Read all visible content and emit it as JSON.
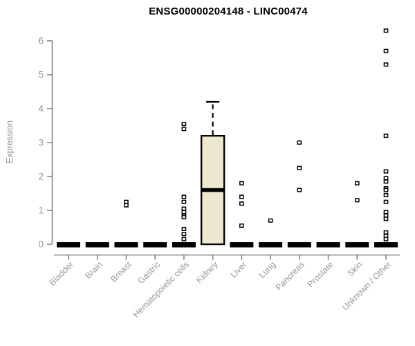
{
  "header": {
    "title": "ENSG00000204148 - LINC00474"
  },
  "chart_data": {
    "type": "boxplot",
    "title": "ENSG00000204148 - LINC00474",
    "xlabel": "",
    "ylabel": "Expression",
    "ylim": [
      0,
      6.45
    ],
    "yticks": [
      0,
      1,
      2,
      3,
      4,
      5,
      6
    ],
    "grid": false,
    "legend": false,
    "categories": [
      "Bladder",
      "Brain",
      "Breast",
      "Gastric",
      "Hematopoietic cells",
      "Kidney",
      "Liver",
      "Lung",
      "Pancreas",
      "Prostate",
      "Skin",
      "Unknown / Other"
    ],
    "boxes": [
      {
        "category": "Bladder",
        "whisker_low": 0,
        "q1": 0,
        "median": 0,
        "q3": 0,
        "whisker_high": 0,
        "outliers": []
      },
      {
        "category": "Brain",
        "whisker_low": 0,
        "q1": 0,
        "median": 0,
        "q3": 0,
        "whisker_high": 0,
        "outliers": []
      },
      {
        "category": "Breast",
        "whisker_low": 0,
        "q1": 0,
        "median": 0,
        "q3": 0,
        "whisker_high": 0,
        "outliers": [
          1.25,
          1.15
        ]
      },
      {
        "category": "Gastric",
        "whisker_low": 0,
        "q1": 0,
        "median": 0,
        "q3": 0,
        "whisker_high": 0,
        "outliers": []
      },
      {
        "category": "Hematopoietic cells",
        "whisker_low": 0,
        "q1": 0,
        "median": 0,
        "q3": 0,
        "whisker_high": 0,
        "outliers": [
          3.55,
          3.4,
          1.4,
          1.25,
          1.05,
          0.95,
          0.85,
          0.8,
          0.45,
          0.3,
          0.15
        ]
      },
      {
        "category": "Kidney",
        "whisker_low": 0,
        "q1": 0,
        "median": 1.6,
        "q3": 3.2,
        "whisker_high": 4.2,
        "outliers": []
      },
      {
        "category": "Liver",
        "whisker_low": 0,
        "q1": 0,
        "median": 0,
        "q3": 0,
        "whisker_high": 0,
        "outliers": [
          1.8,
          1.4,
          1.2,
          0.55
        ]
      },
      {
        "category": "Lung",
        "whisker_low": 0,
        "q1": 0,
        "median": 0,
        "q3": 0,
        "whisker_high": 0,
        "outliers": [
          0.7
        ]
      },
      {
        "category": "Pancreas",
        "whisker_low": 0,
        "q1": 0,
        "median": 0,
        "q3": 0,
        "whisker_high": 0,
        "outliers": [
          3.0,
          2.25,
          1.6
        ]
      },
      {
        "category": "Prostate",
        "whisker_low": 0,
        "q1": 0,
        "median": 0,
        "q3": 0,
        "whisker_high": 0,
        "outliers": []
      },
      {
        "category": "Skin",
        "whisker_low": 0,
        "q1": 0,
        "median": 0,
        "q3": 0,
        "whisker_high": 0,
        "outliers": [
          1.8,
          1.3
        ]
      },
      {
        "category": "Unknown / Other",
        "whisker_low": 0,
        "q1": 0,
        "median": 0,
        "q3": 0,
        "whisker_high": 0,
        "outliers": [
          6.3,
          5.7,
          5.3,
          3.2,
          2.15,
          1.95,
          1.85,
          1.65,
          1.6,
          1.45,
          1.25,
          0.95,
          0.85,
          0.75,
          0.35,
          0.25,
          0.15
        ]
      }
    ],
    "colors": {
      "box_fill": "#ece8cd",
      "box_stroke": "#000000",
      "median": "#000000",
      "zero_bar": "#000000",
      "outlier_fill": "#ffffff",
      "outlier_stroke": "#000000",
      "axis_line": "#848484",
      "tick_label": "#989898",
      "title": "#000000"
    }
  }
}
